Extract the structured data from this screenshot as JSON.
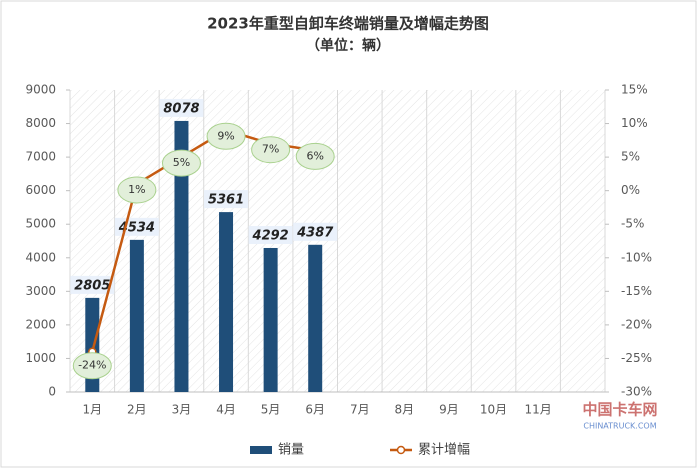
{
  "chart_data": {
    "type": "bar-line",
    "title": "2023年重型自卸车终端销量及增幅走势图",
    "subtitle": "（单位：辆）",
    "categories": [
      "1月",
      "2月",
      "3月",
      "4月",
      "5月",
      "6月",
      "7月",
      "8月",
      "9月",
      "10月",
      "11月",
      null
    ],
    "series": [
      {
        "name": "销量",
        "type": "bar",
        "color": "#1f4e79",
        "values": [
          2805,
          4534,
          8078,
          5361,
          4292,
          4387,
          null,
          null,
          null,
          null,
          null,
          null
        ]
      },
      {
        "name": "累计增幅",
        "type": "line",
        "axis": "y2",
        "color": "#c55a11",
        "values": [
          -24,
          1,
          5,
          9,
          7,
          6,
          null,
          null,
          null,
          null,
          null,
          null
        ],
        "value_labels": [
          "-24%",
          "1%",
          "5%",
          "9%",
          "7%",
          "6%",
          null,
          null,
          null,
          null,
          null,
          null
        ]
      }
    ],
    "ylim": [
      0,
      9000
    ],
    "yticks": [
      0,
      1000,
      2000,
      3000,
      4000,
      5000,
      6000,
      7000,
      8000,
      9000
    ],
    "y2lim": [
      -30,
      15
    ],
    "y2ticks": [
      {
        "value": -30,
        "label": "-30%"
      },
      {
        "value": -25,
        "label": "-25%"
      },
      {
        "value": -20,
        "label": "-20%"
      },
      {
        "value": -15,
        "label": "-15%"
      },
      {
        "value": -10,
        "label": "-10%"
      },
      {
        "value": -5,
        "label": "-5%"
      },
      {
        "value": 0,
        "label": "0%"
      },
      {
        "value": 5,
        "label": "5%"
      },
      {
        "value": 10,
        "label": "10%"
      },
      {
        "value": 15,
        "label": "15%"
      }
    ],
    "legend": "bottom",
    "watermark": [
      "中国卡车网",
      "CHINATRUCK.COM"
    ]
  }
}
